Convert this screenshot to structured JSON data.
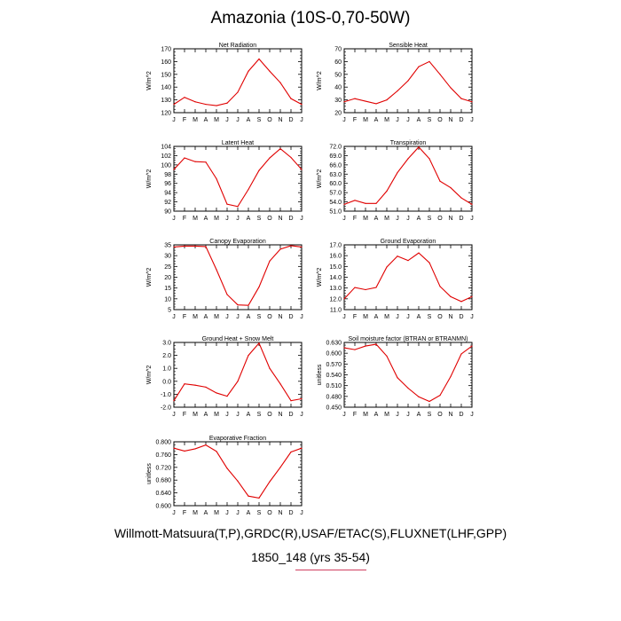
{
  "page": {
    "title": "Amazonia (10S-0,70-50W)",
    "source": "Willmott-Matsuura(T,P),GRDC(R),USAF/ETAC(S),FLUXNET(LHF,GPP)",
    "case": "1850_148 (yrs 35-54)",
    "line_color": "#e00000"
  },
  "chart_data": [
    {
      "type": "line",
      "title": "Net Radiation",
      "ylabel": "W/m^2",
      "categories": [
        "J",
        "F",
        "M",
        "A",
        "M",
        "J",
        "J",
        "A",
        "S",
        "O",
        "N",
        "D",
        "J"
      ],
      "ylim": [
        120,
        170
      ],
      "yticks": [
        "120",
        "130",
        "140",
        "150",
        "160",
        "170"
      ],
      "values": [
        126.5,
        132,
        128.5,
        126.5,
        125.5,
        127.5,
        136,
        152.5,
        162,
        152.5,
        143.5,
        131,
        126.5
      ]
    },
    {
      "type": "line",
      "title": "Sensible Heat",
      "ylabel": "W/m^2",
      "categories": [
        "J",
        "F",
        "M",
        "A",
        "M",
        "J",
        "J",
        "A",
        "S",
        "O",
        "N",
        "D",
        "J"
      ],
      "ylim": [
        20,
        70
      ],
      "yticks": [
        "20",
        "30",
        "40",
        "50",
        "60",
        "70"
      ],
      "values": [
        28.5,
        31,
        29,
        27,
        30,
        37,
        45,
        56,
        60,
        50,
        39.5,
        31,
        28.5
      ]
    },
    {
      "type": "line",
      "title": "Latent Heat",
      "ylabel": "W/m^2",
      "categories": [
        "J",
        "F",
        "M",
        "A",
        "M",
        "J",
        "J",
        "A",
        "S",
        "O",
        "N",
        "D",
        "J"
      ],
      "ylim": [
        90,
        104
      ],
      "yticks": [
        "90",
        "92",
        "94",
        "96",
        "98",
        "100",
        "102",
        "104"
      ],
      "values": [
        99,
        101.5,
        100.7,
        100.6,
        97,
        91.5,
        91,
        94.7,
        98.8,
        101.5,
        103.5,
        101.6,
        99
      ]
    },
    {
      "type": "line",
      "title": "Transpiration",
      "ylabel": "W/m^2",
      "categories": [
        "J",
        "F",
        "M",
        "A",
        "M",
        "J",
        "J",
        "A",
        "S",
        "O",
        "N",
        "D",
        "J"
      ],
      "ylim": [
        51,
        72
      ],
      "yticks": [
        "51.0",
        "54.0",
        "57.0",
        "60.0",
        "63.0",
        "66.0",
        "69.0",
        "72.0"
      ],
      "values": [
        53.2,
        54.5,
        53.5,
        53.5,
        57.5,
        63.5,
        68,
        71.8,
        68,
        60.7,
        58.6,
        55.3,
        53.2
      ]
    },
    {
      "type": "line",
      "title": "Canopy Evaporation",
      "ylabel": "W/m^2",
      "categories": [
        "J",
        "F",
        "M",
        "A",
        "M",
        "J",
        "J",
        "A",
        "S",
        "O",
        "N",
        "D",
        "J"
      ],
      "ylim": [
        5,
        35
      ],
      "yticks": [
        "5",
        "10",
        "15",
        "20",
        "25",
        "30",
        "35"
      ],
      "values": [
        34,
        34.4,
        34.4,
        34.2,
        23.5,
        12,
        7.2,
        7,
        15.5,
        27.5,
        33,
        34.6,
        34
      ]
    },
    {
      "type": "line",
      "title": "Ground Evaporation",
      "ylabel": "W/m^2",
      "categories": [
        "J",
        "F",
        "M",
        "A",
        "M",
        "J",
        "J",
        "A",
        "S",
        "O",
        "N",
        "D",
        "J"
      ],
      "ylim": [
        11,
        17
      ],
      "yticks": [
        "11.0",
        "12.0",
        "13.0",
        "14.0",
        "15.0",
        "16.0",
        "17.0"
      ],
      "values": [
        12,
        13.05,
        12.85,
        13.05,
        14.95,
        15.95,
        15.55,
        16.25,
        15.35,
        13.15,
        12.2,
        11.75,
        12.2
      ]
    },
    {
      "type": "line",
      "title": "Ground Heat + Snow Melt",
      "ylabel": "W/m^2",
      "categories": [
        "J",
        "F",
        "M",
        "A",
        "M",
        "J",
        "J",
        "A",
        "S",
        "O",
        "N",
        "D",
        "J"
      ],
      "ylim": [
        -2,
        3
      ],
      "yticks": [
        "-2.0",
        "-1.0",
        "0.0",
        "1.0",
        "2.0",
        "3.0"
      ],
      "values": [
        -1.5,
        -0.2,
        -0.3,
        -0.45,
        -0.9,
        -1.15,
        0,
        2,
        2.95,
        1,
        -0.2,
        -1.5,
        -1.35
      ]
    },
    {
      "type": "line",
      "title": "Soil moisture factor (BTRAN or BTRANMN)",
      "ylabel": "unitless",
      "categories": [
        "J",
        "F",
        "M",
        "A",
        "M",
        "J",
        "J",
        "A",
        "S",
        "O",
        "N",
        "D",
        "J"
      ],
      "ylim": [
        0.45,
        0.63
      ],
      "yticks": [
        "0.450",
        "0.480",
        "0.510",
        "0.540",
        "0.570",
        "0.600",
        "0.630"
      ],
      "values": [
        0.615,
        0.61,
        0.62,
        0.625,
        0.592,
        0.532,
        0.503,
        0.479,
        0.466,
        0.483,
        0.535,
        0.598,
        0.62
      ]
    },
    {
      "type": "line",
      "title": "Evaporative Fraction",
      "ylabel": "unitless",
      "categories": [
        "J",
        "F",
        "M",
        "A",
        "M",
        "J",
        "J",
        "A",
        "S",
        "O",
        "N",
        "D",
        "J"
      ],
      "ylim": [
        0.6,
        0.8
      ],
      "yticks": [
        "0.600",
        "0.640",
        "0.680",
        "0.720",
        "0.760",
        "0.800"
      ],
      "values": [
        0.78,
        0.771,
        0.778,
        0.79,
        0.77,
        0.717,
        0.677,
        0.63,
        0.624,
        0.675,
        0.72,
        0.768,
        0.78
      ]
    }
  ]
}
